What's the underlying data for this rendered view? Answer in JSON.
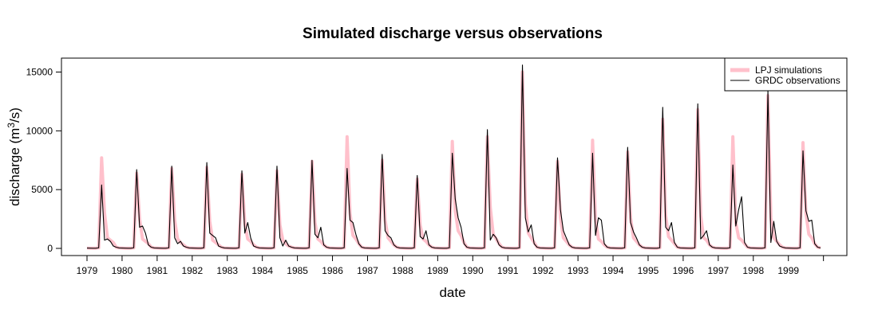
{
  "chart_data": {
    "type": "line",
    "title": "Simulated discharge versus observations",
    "xlabel": "date",
    "ylabel": "discharge (m",
    "ylabel_sup": "3",
    "ylabel_end": "/s)",
    "xlim": [
      "1979-01",
      "1999-12"
    ],
    "ylim": [
      0,
      15500
    ],
    "x_ticks": [
      "1979",
      "1980",
      "1981",
      "1982",
      "1983",
      "1984",
      "1985",
      "1986",
      "1987",
      "1988",
      "1989",
      "1990",
      "1991",
      "1992",
      "1993",
      "1994",
      "1995",
      "1996",
      "1997",
      "1998",
      "1999"
    ],
    "y_ticks": [
      "0",
      "5000",
      "10000",
      "15000"
    ],
    "legend_position": "top-right",
    "series": [
      {
        "name": "LPJ simulations",
        "color": "#ffc0cb",
        "peaks": [
          {
            "year": 1979,
            "peak": 7700,
            "post": [
              3000,
              900,
              700,
              500
            ]
          },
          {
            "year": 1980,
            "peak": 6400,
            "post": [
              2500,
              800,
              600,
              400
            ]
          },
          {
            "year": 1981,
            "peak": 6800,
            "post": [
              2400,
              800,
              500,
              300
            ]
          },
          {
            "year": 1982,
            "peak": 6900,
            "post": [
              2300,
              700,
              500,
              300
            ]
          },
          {
            "year": 1983,
            "peak": 6300,
            "post": [
              2100,
              800,
              600,
              300
            ]
          },
          {
            "year": 1984,
            "peak": 6600,
            "post": [
              2000,
              700,
              400,
              200
            ]
          },
          {
            "year": 1985,
            "peak": 7400,
            "post": [
              2200,
              800,
              600,
              300
            ]
          },
          {
            "year": 1986,
            "peak": 9500,
            "post": [
              3000,
              1100,
              800,
              400
            ]
          },
          {
            "year": 1987,
            "peak": 7500,
            "post": [
              2400,
              900,
              600,
              300
            ]
          },
          {
            "year": 1988,
            "peak": 5900,
            "post": [
              2000,
              800,
              600,
              300
            ]
          },
          {
            "year": 1989,
            "peak": 9100,
            "post": [
              3200,
              1500,
              1100,
              500
            ]
          },
          {
            "year": 1990,
            "peak": 9500,
            "post": [
              3500,
              1200,
              800,
              400
            ]
          },
          {
            "year": 1991,
            "peak": 15000,
            "post": [
              3800,
              1300,
              900,
              500
            ]
          },
          {
            "year": 1992,
            "peak": 7400,
            "post": [
              2600,
              900,
              600,
              300
            ]
          },
          {
            "year": 1993,
            "peak": 9200,
            "post": [
              2500,
              800,
              600,
              300
            ]
          },
          {
            "year": 1994,
            "peak": 8200,
            "post": [
              2600,
              900,
              600,
              300
            ]
          },
          {
            "year": 1995,
            "peak": 11000,
            "post": [
              2800,
              1000,
              700,
              400
            ]
          },
          {
            "year": 1996,
            "peak": 11800,
            "post": [
              2800,
              900,
              700,
              300
            ]
          },
          {
            "year": 1997,
            "peak": 9500,
            "post": [
              2200,
              900,
              700,
              400
            ]
          },
          {
            "year": 1998,
            "peak": 13000,
            "post": [
              2600,
              900,
              600,
              300
            ]
          },
          {
            "year": 1999,
            "peak": 9000,
            "post": [
              3000,
              1200,
              900,
              400
            ]
          }
        ]
      },
      {
        "name": "GRDC observations",
        "color": "#000000",
        "peaks": [
          {
            "year": 1979,
            "peak": 5400,
            "post": [
              700,
              800,
              600,
              200
            ]
          },
          {
            "year": 1980,
            "peak": 6700,
            "post": [
              1800,
              1900,
              1300,
              300
            ]
          },
          {
            "year": 1981,
            "peak": 7000,
            "post": [
              900,
              400,
              600,
              200
            ]
          },
          {
            "year": 1982,
            "peak": 7300,
            "post": [
              1300,
              1100,
              900,
              200
            ]
          },
          {
            "year": 1983,
            "peak": 6600,
            "post": [
              1300,
              2200,
              900,
              200
            ]
          },
          {
            "year": 1984,
            "peak": 7000,
            "post": [
              900,
              200,
              700,
              200
            ]
          },
          {
            "year": 1985,
            "peak": 7500,
            "post": [
              1200,
              900,
              1800,
              300
            ]
          },
          {
            "year": 1986,
            "peak": 6800,
            "post": [
              2400,
              2200,
              1200,
              400
            ]
          },
          {
            "year": 1987,
            "peak": 8000,
            "post": [
              1500,
              1100,
              900,
              300
            ]
          },
          {
            "year": 1988,
            "peak": 6200,
            "post": [
              1000,
              800,
              1500,
              300
            ]
          },
          {
            "year": 1989,
            "peak": 8100,
            "post": [
              4200,
              2600,
              1800,
              400
            ]
          },
          {
            "year": 1990,
            "peak": 10100,
            "post": [
              700,
              1200,
              900,
              300
            ]
          },
          {
            "year": 1991,
            "peak": 15600,
            "post": [
              2600,
              1400,
              2000,
              400
            ]
          },
          {
            "year": 1992,
            "peak": 7700,
            "post": [
              3300,
              1500,
              900,
              300
            ]
          },
          {
            "year": 1993,
            "peak": 8100,
            "post": [
              1100,
              2600,
              2400,
              400
            ]
          },
          {
            "year": 1994,
            "peak": 8600,
            "post": [
              2200,
              1400,
              900,
              300
            ]
          },
          {
            "year": 1995,
            "peak": 12000,
            "post": [
              1800,
              1500,
              2200,
              500
            ]
          },
          {
            "year": 1996,
            "peak": 12300,
            "post": [
              800,
              1100,
              1500,
              300
            ]
          },
          {
            "year": 1997,
            "peak": 7100,
            "post": [
              1900,
              3300,
              4400,
              500
            ]
          },
          {
            "year": 1998,
            "peak": 13400,
            "post": [
              500,
              2300,
              600,
              200
            ]
          },
          {
            "year": 1999,
            "peak": 8300,
            "post": [
              3200,
              2300,
              2400,
              400
            ]
          }
        ]
      }
    ]
  }
}
